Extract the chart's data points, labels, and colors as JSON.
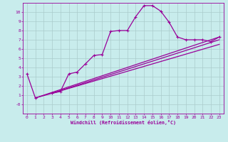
{
  "xlabel": "Windchill (Refroidissement éolien,°C)",
  "bg_color": "#c8ecec",
  "line_color": "#990099",
  "grid_color": "#aacccc",
  "xlim": [
    -0.5,
    23.5
  ],
  "ylim": [
    -1.0,
    11.0
  ],
  "xticks": [
    0,
    1,
    2,
    3,
    4,
    5,
    6,
    7,
    8,
    9,
    10,
    11,
    12,
    13,
    14,
    15,
    16,
    17,
    18,
    19,
    20,
    21,
    22,
    23
  ],
  "yticks": [
    0,
    1,
    2,
    3,
    4,
    5,
    6,
    7,
    8,
    9,
    10
  ],
  "ytick_labels": [
    "-0",
    "1",
    "2",
    "3",
    "4",
    "5",
    "6",
    "7",
    "8",
    "9",
    "10"
  ],
  "curve1_x": [
    0,
    1,
    3,
    4,
    5,
    6,
    7,
    8,
    9,
    10,
    11,
    12,
    13,
    14,
    15,
    16,
    17,
    18,
    19,
    20,
    21,
    22,
    23
  ],
  "curve1_y": [
    3.3,
    0.7,
    1.2,
    1.4,
    3.3,
    3.5,
    4.4,
    5.3,
    5.4,
    7.9,
    8.0,
    8.0,
    9.5,
    10.7,
    10.7,
    10.1,
    8.9,
    7.3,
    7.0,
    7.0,
    7.0,
    6.8,
    7.3
  ],
  "line1_x": [
    1,
    23
  ],
  "line1_y": [
    0.7,
    7.3
  ],
  "line2_x": [
    3,
    23
  ],
  "line2_y": [
    1.2,
    7.0
  ],
  "line3_x": [
    3,
    23
  ],
  "line3_y": [
    1.2,
    6.5
  ]
}
